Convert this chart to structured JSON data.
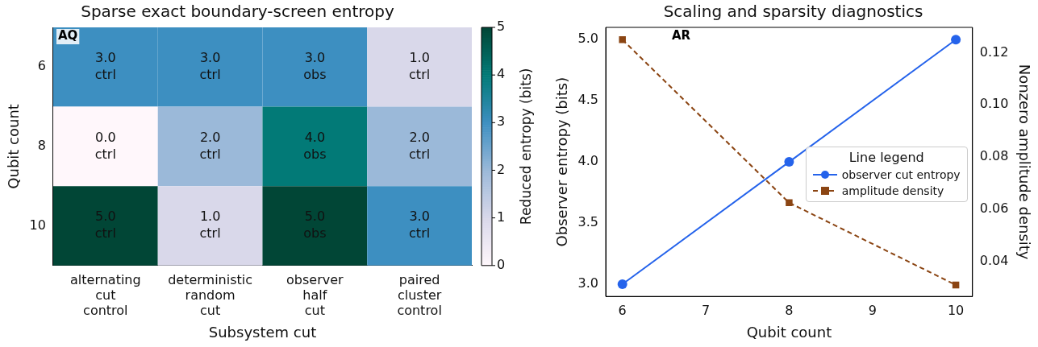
{
  "chart_data": [
    {
      "type": "heatmap",
      "title": "Sparse exact boundary-screen entropy",
      "xlabel": "Subsystem cut",
      "ylabel": "Qubit count",
      "clabel": "Reduced entropy (bits)",
      "categories": [
        "alternating\ncut\ncontrol",
        "deterministic\nrandom\ncut",
        "observer\nhalf\ncut",
        "paired\ncluster\ncontrol"
      ],
      "y_categories": [
        "6",
        "8",
        "10"
      ],
      "cells": [
        [
          3,
          3,
          3,
          1
        ],
        [
          0,
          2,
          4,
          2
        ],
        [
          5,
          1,
          5,
          3
        ]
      ],
      "cell_labels": [
        [
          "3.0\nctrl",
          "3.0\nctrl",
          "3.0\nobs",
          "1.0\nctrl"
        ],
        [
          "0.0\nctrl",
          "2.0\nctrl",
          "4.0\nobs",
          "2.0\nctrl"
        ],
        [
          "5.0\nctrl",
          "1.0\nctrl",
          "5.0\nobs",
          "3.0\nctrl"
        ]
      ],
      "clim": [
        0,
        5
      ],
      "cticks": [
        0,
        1,
        2,
        3,
        4,
        5
      ],
      "annotations": [
        "AQ"
      ]
    },
    {
      "type": "line",
      "title": "Scaling and sparsity diagnostics",
      "xlabel": "Qubit count",
      "ylabel": "Observer entropy (bits)",
      "y2label": "Nonzero amplitude density",
      "legend_title": "Line legend",
      "legend": "right",
      "x": [
        6,
        8,
        10
      ],
      "xlim": [
        5.8,
        10.2
      ],
      "xticks": [
        6,
        7,
        8,
        9,
        10
      ],
      "ylim": [
        2.9,
        5.1
      ],
      "yticks": [
        {
          "value": 3,
          "label": "3.0"
        },
        {
          "value": 3.5,
          "label": "3.5"
        },
        {
          "value": 4,
          "label": "4.0"
        },
        {
          "value": 4.5,
          "label": "4.5"
        },
        {
          "value": 5,
          "label": "5.0"
        }
      ],
      "y2lim": [
        0.0266,
        0.1297
      ],
      "y2ticks": [
        0.04,
        0.06,
        0.08,
        {
          "value": 0.1,
          "label": "0.10"
        },
        0.12
      ],
      "marker": "circle",
      "line_style": "solid",
      "series": [
        {
          "name": "observer cut entropy",
          "color": "#2563eb",
          "values": [
            3,
            4,
            5
          ]
        },
        {
          "name": "amplitude density",
          "color": "#8b4513",
          "values": [
            0.125,
            0.0625,
            0.031
          ],
          "axis": "y2",
          "marker": "square",
          "line_style": "dashed"
        }
      ],
      "annotations": [
        "AR"
      ]
    }
  ]
}
